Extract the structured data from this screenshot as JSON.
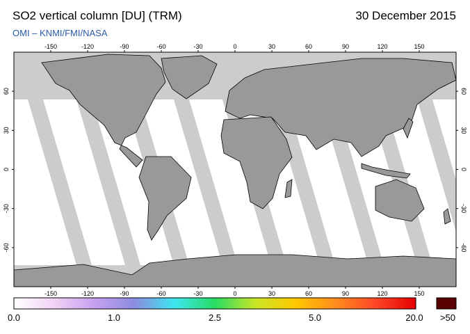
{
  "header": {
    "title": "SO2 vertical column [DU] (TRM)",
    "date": "30 December 2015",
    "source": "OMI  –  KNMI/FMI/NASA"
  },
  "map": {
    "projection": "equirectangular",
    "lon_range": [
      -180,
      180
    ],
    "lat_range": [
      -90,
      90
    ],
    "lon_ticks": [
      -150,
      -120,
      -90,
      -60,
      -30,
      0,
      30,
      60,
      90,
      120,
      150
    ],
    "lat_ticks": [
      60,
      30,
      0,
      -30,
      -60
    ],
    "lon_tick_labels": [
      "-150",
      "-120",
      "-90",
      "-60",
      "-30",
      "0",
      "30",
      "60",
      "90",
      "120",
      "150"
    ],
    "lat_tick_labels": [
      "60",
      "30",
      "0",
      "-30",
      "-60"
    ],
    "colors": {
      "no_data": "#cccccc",
      "land_no_data": "#999999",
      "coastline": "#000000",
      "background_low": "#ffffff"
    }
  },
  "colorbar": {
    "labels": [
      "0.0",
      "1.0",
      "2.5",
      "5.0",
      "20.0",
      ">50"
    ],
    "colors": [
      "#ffffff",
      "#f2d2f5",
      "#c8a0f0",
      "#8c8ce0",
      "#3ce6f0",
      "#28dc64",
      "#c8e628",
      "#ffc800",
      "#ff8c1e",
      "#ff4628",
      "#e60000"
    ],
    "overflow_color": "#5a0000"
  }
}
